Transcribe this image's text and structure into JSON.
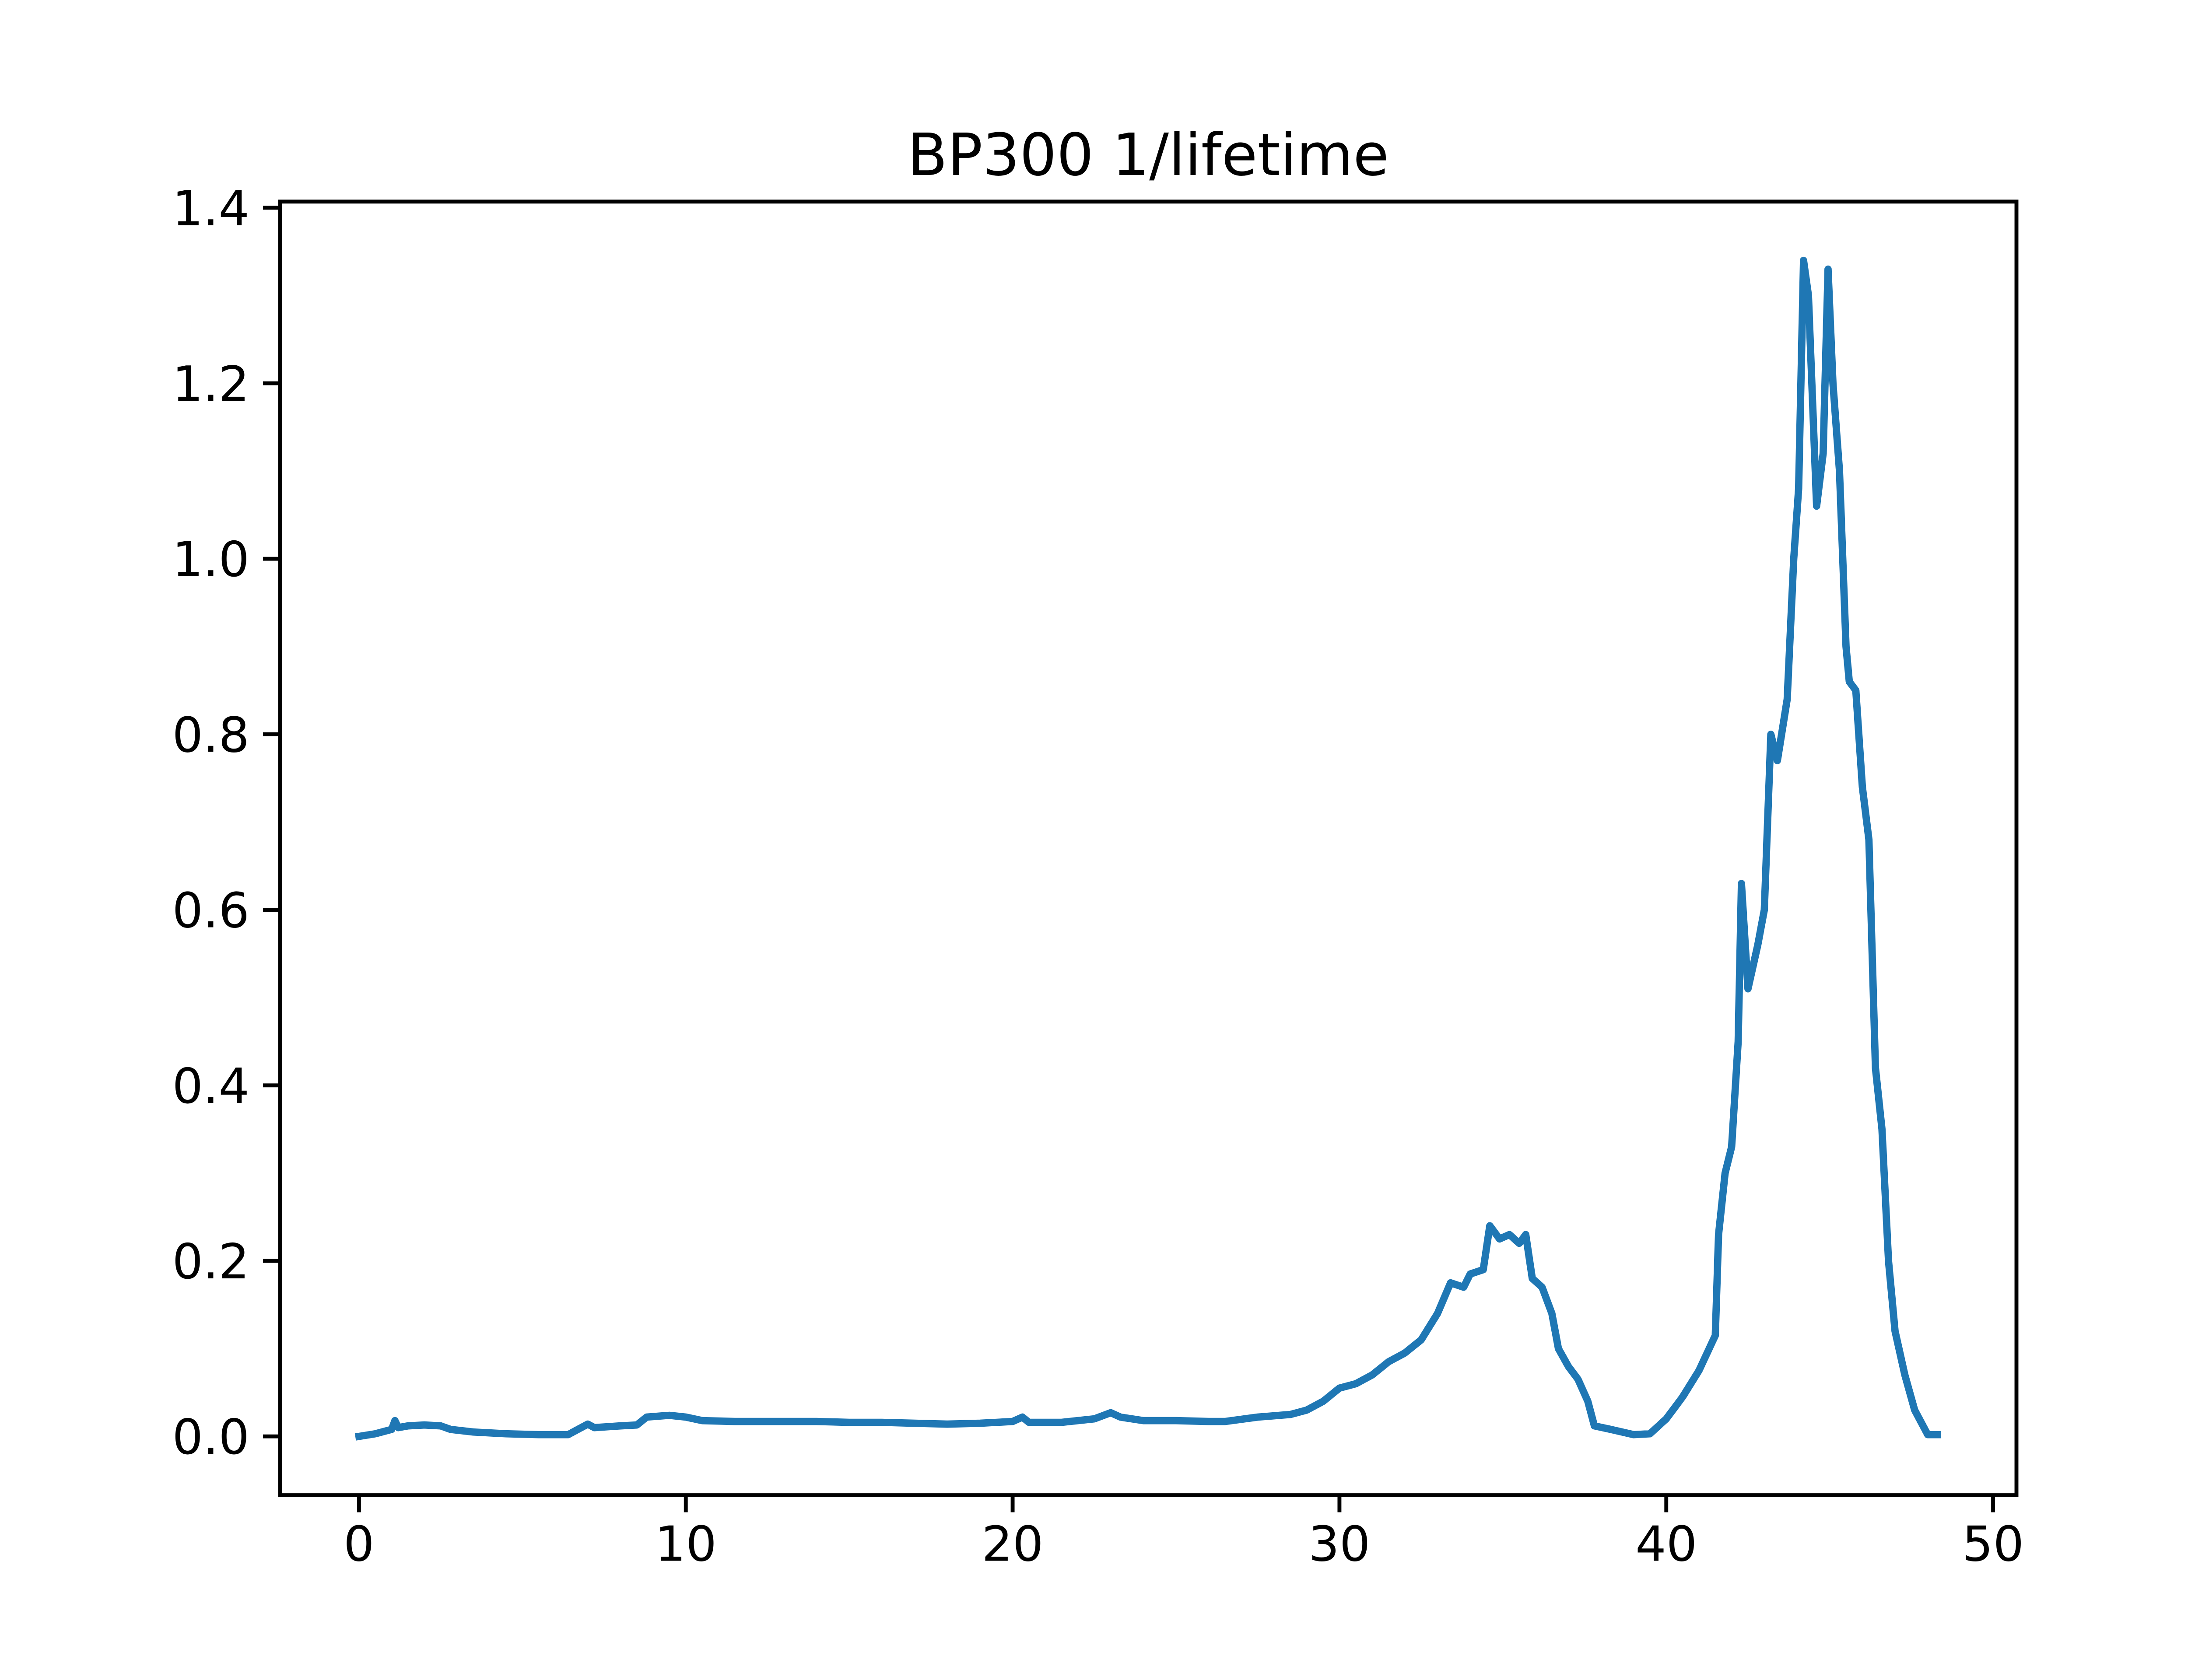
{
  "chart_data": {
    "type": "line",
    "title": "BP300 1/lifetime",
    "x": [
      0,
      0.5,
      1,
      1.1,
      1.2,
      1.5,
      2,
      2.5,
      2.8,
      3.5,
      4.5,
      5.5,
      6.4,
      6.7,
      7,
      7.2,
      8,
      8.5,
      8.8,
      9.5,
      10,
      10.5,
      11.5,
      13,
      14,
      15,
      16,
      17,
      18,
      19,
      20,
      20.3,
      20.5,
      21.5,
      22.5,
      23,
      23.3,
      24,
      25,
      26,
      26.5,
      27.5,
      28.5,
      29,
      29.5,
      30,
      30.5,
      31,
      31.5,
      32,
      32.5,
      33,
      33.4,
      33.8,
      34,
      34.4,
      34.6,
      34.9,
      35.2,
      35.5,
      35.7,
      35.9,
      36.2,
      36.5,
      36.7,
      37,
      37.3,
      37.6,
      37.8,
      38.3,
      39,
      39.5,
      40,
      40.5,
      41,
      41.5,
      41.6,
      41.8,
      42,
      42.2,
      42.3,
      42.5,
      42.8,
      43,
      43.2,
      43.4,
      43.7,
      43.9,
      44.05,
      44.2,
      44.35,
      44.6,
      44.8,
      44.95,
      45.1,
      45.3,
      45.5,
      45.6,
      45.8,
      46,
      46.2,
      46.4,
      46.6,
      46.8,
      47,
      47.3,
      47.6,
      48,
      48.3
    ],
    "series": [
      {
        "color": "#1f77b4",
        "values": [
          0,
          0.003,
          0.008,
          0.018,
          0.01,
          0.012,
          0.013,
          0.012,
          0.008,
          0.005,
          0.003,
          0.002,
          0.002,
          0.008,
          0.014,
          0.01,
          0.012,
          0.013,
          0.022,
          0.024,
          0.022,
          0.018,
          0.017,
          0.017,
          0.017,
          0.016,
          0.016,
          0.015,
          0.014,
          0.015,
          0.017,
          0.022,
          0.016,
          0.016,
          0.02,
          0.027,
          0.022,
          0.018,
          0.018,
          0.017,
          0.017,
          0.022,
          0.025,
          0.03,
          0.04,
          0.055,
          0.06,
          0.07,
          0.085,
          0.095,
          0.11,
          0.14,
          0.175,
          0.17,
          0.185,
          0.19,
          0.24,
          0.225,
          0.23,
          0.22,
          0.23,
          0.18,
          0.17,
          0.14,
          0.1,
          0.08,
          0.065,
          0.04,
          0.012,
          0.008,
          0.002,
          0.003,
          0.02,
          0.045,
          0.075,
          0.115,
          0.23,
          0.3,
          0.33,
          0.45,
          0.63,
          0.51,
          0.56,
          0.6,
          0.8,
          0.77,
          0.84,
          1.0,
          1.08,
          1.34,
          1.3,
          1.06,
          1.12,
          1.33,
          1.2,
          1.1,
          0.9,
          0.86,
          0.85,
          0.74,
          0.68,
          0.42,
          0.35,
          0.2,
          0.12,
          0.07,
          0.03,
          0.002,
          0.002
        ]
      }
    ],
    "xlim": [
      -2.415,
      50.715
    ],
    "ylim": [
      -0.067,
      1.407
    ],
    "xticks": [
      0,
      10,
      20,
      30,
      40,
      50
    ],
    "yticks": [
      {
        "value": 0,
        "label": "0.0"
      },
      0.2,
      0.4,
      0.6,
      0.8,
      {
        "value": 1,
        "label": "1.0"
      },
      1.2,
      1.4
    ]
  }
}
